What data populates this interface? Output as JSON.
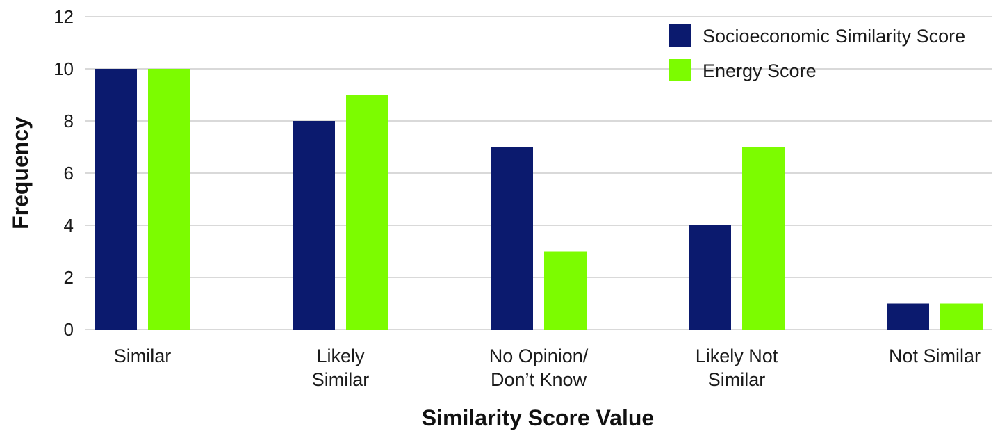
{
  "chart_data": {
    "type": "bar",
    "title": "",
    "xlabel": "Similarity Score Value",
    "ylabel": "Frequency",
    "ylim": [
      0,
      12
    ],
    "yticks": [
      0,
      2,
      4,
      6,
      8,
      10,
      12
    ],
    "grid": true,
    "legend_position": "top-right",
    "categories": [
      [
        "Similar"
      ],
      [
        "Likely",
        "Similar"
      ],
      [
        "No Opinion/",
        "Don’t Know"
      ],
      [
        "Likely Not",
        "Similar"
      ],
      [
        "Not Similar"
      ]
    ],
    "series": [
      {
        "name": "Socioeconomic Similarity Score",
        "color": "#0b1a6e",
        "values": [
          10,
          8,
          7,
          4,
          1
        ]
      },
      {
        "name": "Energy Score",
        "color": "#7cfc00",
        "values": [
          10,
          9,
          3,
          7,
          1
        ]
      }
    ]
  }
}
